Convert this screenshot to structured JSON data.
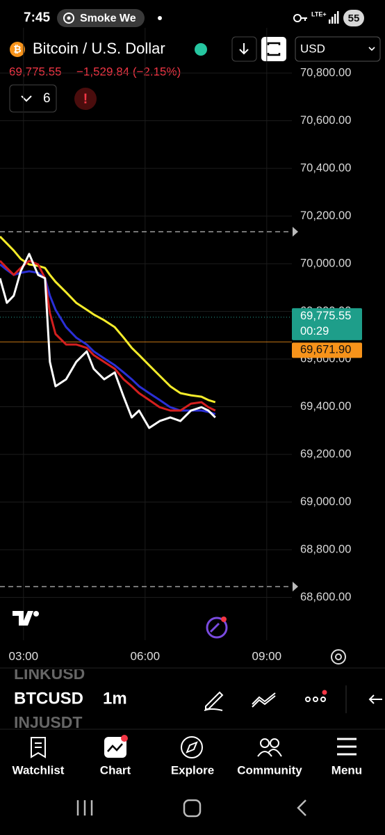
{
  "status_bar": {
    "time": "7:45",
    "notification": "Smoke We",
    "network": "LTE+",
    "battery": "55"
  },
  "header": {
    "symbol_name": "Bitcoin / U.S. Dollar",
    "currency": "USD",
    "price": "69,775.55",
    "change": "−1,529.84 (−2.15%)",
    "indicator_count": "6"
  },
  "chart_data": {
    "type": "line",
    "x": [
      2.42,
      2.59,
      2.76,
      2.93,
      3.14,
      3.36,
      3.53,
      3.65,
      3.79,
      4.05,
      4.3,
      4.56,
      4.73,
      4.99,
      5.25,
      5.47,
      5.67,
      5.85,
      6.1,
      6.36,
      6.62,
      6.87,
      7.13,
      7.39,
      7.56,
      7.73
    ],
    "xlim": [
      2.42,
      9.62
    ],
    "xticks": [
      {
        "value": 3,
        "label": "03:00"
      },
      {
        "value": 6,
        "label": "06:00"
      },
      {
        "value": 9,
        "label": "09:00"
      }
    ],
    "ylim": [
      68479,
      70902
    ],
    "yticks": [
      {
        "value": 70800,
        "label": "70,800.00"
      },
      {
        "value": 70600,
        "label": "70,600.00"
      },
      {
        "value": 70400,
        "label": "70,400.00"
      },
      {
        "value": 70200,
        "label": "70,200.00"
      },
      {
        "value": 70000,
        "label": "70,000.00"
      },
      {
        "value": 69800,
        "label": "69,800.00"
      },
      {
        "value": 69600,
        "label": "69,600.00"
      },
      {
        "value": 69400,
        "label": "69,400.00"
      },
      {
        "value": 69200,
        "label": "69,200.00"
      },
      {
        "value": 69000,
        "label": "69,000.00"
      },
      {
        "value": 68800,
        "label": "68,800.00"
      },
      {
        "value": 68600,
        "label": "68,600.00"
      }
    ],
    "grid": true,
    "series": [
      {
        "color": "#f5ec2a",
        "values": [
          70114,
          70085,
          70055,
          70020,
          69997,
          69991,
          69982,
          69953,
          69924,
          69880,
          69836,
          69807,
          69787,
          69763,
          69734,
          69690,
          69647,
          69617,
          69574,
          69530,
          69486,
          69457,
          69448,
          69442,
          69428,
          69419
        ]
      },
      {
        "color": "#2a2fd6",
        "values": [
          69997,
          69974,
          69953,
          69962,
          69968,
          69962,
          69939,
          69866,
          69807,
          69734,
          69690,
          69661,
          69632,
          69603,
          69574,
          69544,
          69515,
          69486,
          69457,
          69428,
          69398,
          69384,
          69384,
          69384,
          69378,
          69369
        ]
      },
      {
        "color": "#d41f1f",
        "values": [
          70012,
          69982,
          69953,
          69982,
          70012,
          69997,
          69939,
          69793,
          69705,
          69661,
          69661,
          69647,
          69617,
          69588,
          69559,
          69515,
          69486,
          69457,
          69428,
          69398,
          69384,
          69384,
          69413,
          69419,
          69398,
          69384
        ]
      },
      {
        "color": "#ffffff",
        "values": [
          69939,
          69836,
          69866,
          69968,
          70041,
          69953,
          69939,
          69588,
          69486,
          69515,
          69588,
          69632,
          69559,
          69515,
          69544,
          69442,
          69355,
          69384,
          69311,
          69340,
          69355,
          69340,
          69384,
          69398,
          69384,
          69355
        ]
      }
    ],
    "last_price": {
      "value": 69775.55,
      "label": "69,775.55"
    },
    "countdown": "00:29",
    "reference_price": {
      "value": 69671.9,
      "label": "69,671.90"
    }
  },
  "toolbar": {
    "symbol_prev": "LINKUSD",
    "symbol": "BTCUSD",
    "interval": "1m",
    "symbol_next": "INJUSDT"
  },
  "tabs": [
    "Watchlist",
    "Chart",
    "Explore",
    "Community",
    "Menu"
  ]
}
